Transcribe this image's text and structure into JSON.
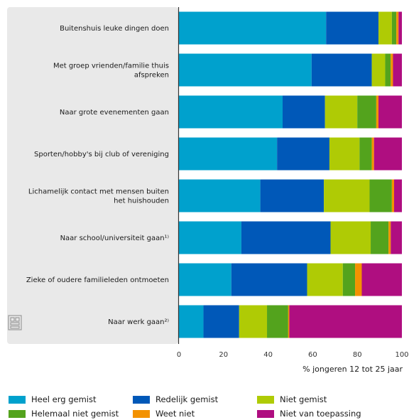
{
  "chart_data": {
    "type": "bar",
    "orientation": "horizontal",
    "stacked": true,
    "xlabel": "% jongeren 12 tot 25 jaar",
    "xlim": [
      0,
      100
    ],
    "xticks": [
      0,
      20,
      40,
      60,
      80,
      100
    ],
    "grid": false,
    "legend_position": "bottom",
    "categories": [
      "Buitenshuis leuke dingen doen",
      "Met groep vrienden/familie thuis afspreken",
      "Naar grote evenementen gaan",
      "Sporten/hobby's bij club of vereniging",
      "Lichamelijk contact met mensen buiten het huishouden",
      "Naar school/universiteit gaan¹⁾",
      "Zieke of oudere familieleden ontmoeten",
      "Naar werk gaan²⁾"
    ],
    "category_lines": [
      [
        "Buitenshuis leuke dingen doen"
      ],
      [
        "Met groep vrienden/familie thuis",
        "afspreken"
      ],
      [
        "Naar grote evenementen gaan"
      ],
      [
        "Sporten/hobby's bij club of vereniging"
      ],
      [
        "Lichamelijk contact met mensen buiten",
        "het huishouden"
      ],
      [
        "Naar school/universiteit gaan¹⁾"
      ],
      [
        "Zieke of oudere familieleden ontmoeten"
      ],
      [
        "Naar werk gaan²⁾"
      ]
    ],
    "series": [
      {
        "name": "Heel erg gemist",
        "color": "#00a1cd",
        "values": [
          66,
          59.5,
          46.5,
          44,
          36.5,
          28,
          23.5,
          11
        ]
      },
      {
        "name": "Redelijk gemist",
        "color": "#0058b8",
        "values": [
          23.5,
          27,
          19,
          23.5,
          28.5,
          40,
          34,
          16
        ]
      },
      {
        "name": "Niet gemist",
        "color": "#afcb05",
        "values": [
          6,
          6,
          14.5,
          13.5,
          20.5,
          18,
          16,
          12.5
        ]
      },
      {
        "name": "Helemaal niet gemist",
        "color": "#53a31d",
        "values": [
          2,
          2.5,
          8.5,
          5.5,
          10,
          8,
          5.5,
          9.5
        ]
      },
      {
        "name": "Weet niet",
        "color": "#f39200",
        "values": [
          1,
          1,
          1,
          1,
          1,
          1,
          3,
          0.5
        ]
      },
      {
        "name": "Niet van toepassing",
        "color": "#af0e80",
        "values": [
          1.5,
          4,
          10.5,
          12.5,
          3.5,
          5,
          18,
          50.5
        ]
      }
    ]
  },
  "legend_items": [
    {
      "label": "Heel erg gemist",
      "color": "#00a1cd"
    },
    {
      "label": "Redelijk gemist",
      "color": "#0058b8"
    },
    {
      "label": "Niet gemist",
      "color": "#afcb05"
    },
    {
      "label": "Helemaal niet gemist",
      "color": "#53a31d"
    },
    {
      "label": "Weet niet",
      "color": "#f39200"
    },
    {
      "label": "Niet van toepassing",
      "color": "#af0e80"
    }
  ],
  "colors": {
    "label_panel": "#e9e9e9",
    "axis": "#333333"
  },
  "logo": "cbs-logo-icon"
}
